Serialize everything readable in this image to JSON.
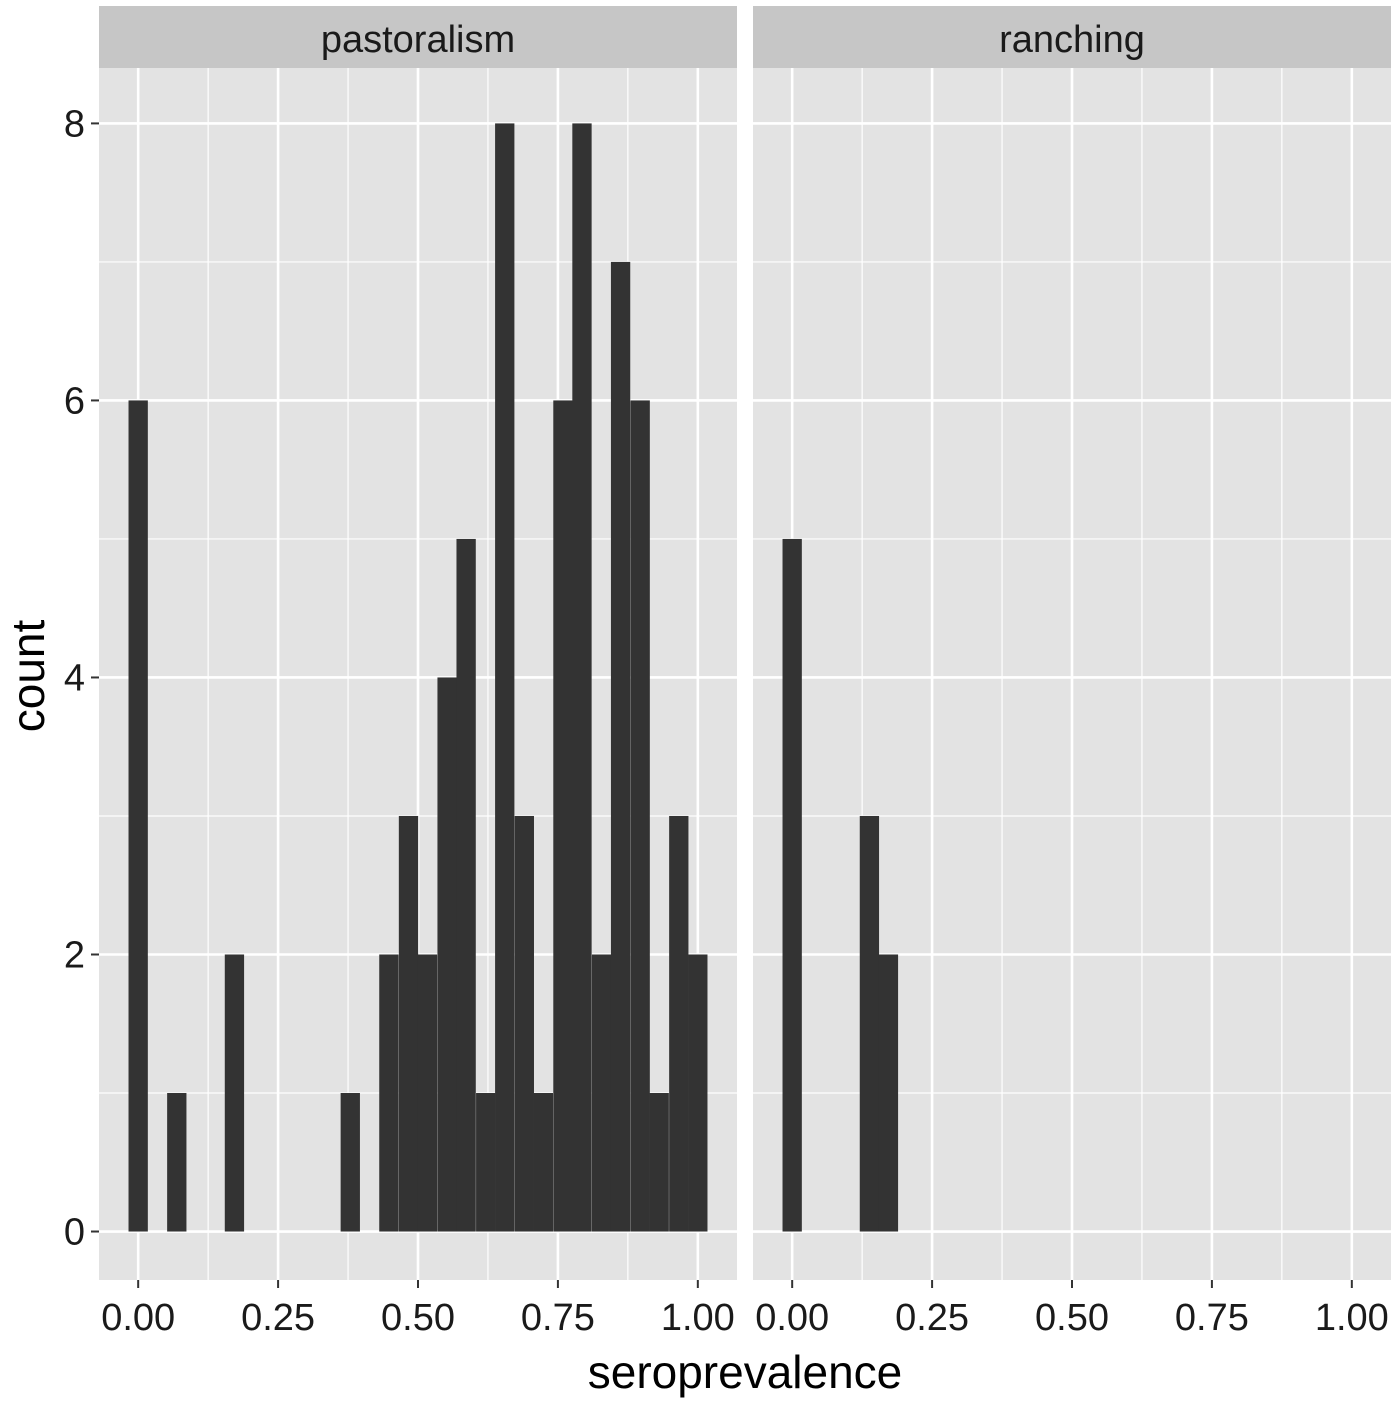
{
  "chart_data": {
    "type": "bar",
    "xlabel": "seroprevalence",
    "ylabel": "count",
    "xlim": [
      -0.07,
      1.07
    ],
    "ylim": [
      -0.35,
      8.4
    ],
    "x_ticks": [
      0,
      0.25,
      0.5,
      0.75,
      1.0
    ],
    "x_tick_labels": [
      "0.00",
      "0.25",
      "0.50",
      "0.75",
      "1.00"
    ],
    "y_ticks": [
      0,
      2,
      4,
      6,
      8
    ],
    "y_tick_labels": [
      "0",
      "2",
      "4",
      "6",
      "8"
    ],
    "bin_width": 0.0345,
    "grid": true,
    "colors": {
      "panel_bg": "#e3e3e3",
      "strip_bg": "#c6c6c6",
      "bar": "#333333",
      "grid": "#ffffff"
    },
    "panels": [
      {
        "name": "pastoralism",
        "bins": [
          {
            "x": 0.0,
            "count": 6
          },
          {
            "x": 0.069,
            "count": 1
          },
          {
            "x": 0.172,
            "count": 2
          },
          {
            "x": 0.379,
            "count": 1
          },
          {
            "x": 0.448,
            "count": 2
          },
          {
            "x": 0.483,
            "count": 3
          },
          {
            "x": 0.517,
            "count": 2
          },
          {
            "x": 0.552,
            "count": 4
          },
          {
            "x": 0.586,
            "count": 5
          },
          {
            "x": 0.621,
            "count": 1
          },
          {
            "x": 0.655,
            "count": 8
          },
          {
            "x": 0.69,
            "count": 3
          },
          {
            "x": 0.724,
            "count": 1
          },
          {
            "x": 0.759,
            "count": 6
          },
          {
            "x": 0.793,
            "count": 8
          },
          {
            "x": 0.828,
            "count": 2
          },
          {
            "x": 0.862,
            "count": 7
          },
          {
            "x": 0.897,
            "count": 6
          },
          {
            "x": 0.931,
            "count": 1
          },
          {
            "x": 0.966,
            "count": 3
          },
          {
            "x": 1.0,
            "count": 2
          }
        ]
      },
      {
        "name": "ranching",
        "bins": [
          {
            "x": 0.0,
            "count": 5
          },
          {
            "x": 0.138,
            "count": 3
          },
          {
            "x": 0.172,
            "count": 2
          }
        ]
      }
    ]
  }
}
